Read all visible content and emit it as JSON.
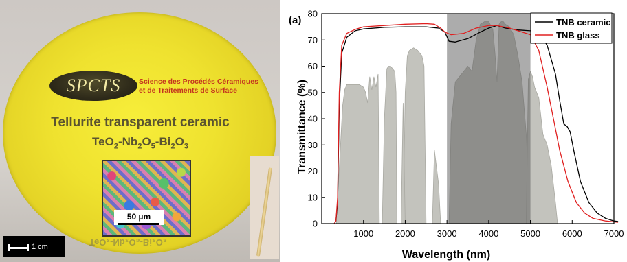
{
  "photo": {
    "logo_text": "SPCTS",
    "lab_line1": "Science des Procédés Céramiques",
    "lab_line2": "et de Traitements de Surface",
    "caption_line1": "Tellurite transparent ceramic",
    "formula": {
      "a": "TeO",
      "a_sub": "2",
      "b": "-Nb",
      "b_sub": "2",
      "c": "O",
      "c_sub": "5",
      "d": "-Bi",
      "d_sub": "2",
      "e": "O",
      "e_sub": "3"
    },
    "micro_scale_label": "50 µm",
    "photo_scale_label": "1 cm",
    "reflection_text": "TeO₂-Nb₂O₅-Bi₂O₃"
  },
  "chart_data": {
    "type": "line",
    "panel_label": "(a)",
    "title": "",
    "xlabel": "Wavelength (nm)",
    "ylabel": "Transmittance (%)",
    "xlim": [
      0,
      7000
    ],
    "ylim": [
      0,
      80
    ],
    "xticks": [
      1000,
      2000,
      3000,
      4000,
      5000,
      6000,
      7000
    ],
    "yticks": [
      0,
      10,
      20,
      30,
      40,
      50,
      60,
      70,
      80
    ],
    "legend_position": "top-right",
    "series": [
      {
        "name": "TNB ceramic",
        "color": "#000000",
        "x": [
          300,
          340,
          380,
          420,
          480,
          600,
          800,
          1000,
          1500,
          2000,
          2500,
          2800,
          2950,
          3050,
          3200,
          3500,
          3800,
          4000,
          4200,
          4400,
          4700,
          5000,
          5200,
          5400,
          5600,
          5700,
          5800,
          5880,
          5950,
          6050,
          6200,
          6400,
          6600,
          6800,
          7000,
          7100
        ],
        "y": [
          0,
          1,
          8,
          45,
          65,
          71,
          73.5,
          74.2,
          74.8,
          75,
          75,
          74.5,
          73,
          69.5,
          69.2,
          70.5,
          73,
          74.5,
          75.5,
          74.5,
          73.8,
          73.5,
          72.5,
          68,
          57,
          47,
          38,
          37,
          35,
          27,
          16,
          8,
          4,
          2,
          1,
          0.8
        ]
      },
      {
        "name": "TNB glass",
        "color": "#e02020",
        "x": [
          300,
          340,
          380,
          420,
          480,
          600,
          800,
          1000,
          1500,
          2000,
          2500,
          2700,
          2850,
          2950,
          3100,
          3400,
          3700,
          4000,
          4200,
          4500,
          4800,
          5000,
          5200,
          5400,
          5550,
          5700,
          5900,
          6100,
          6300,
          6500,
          6800,
          7100
        ],
        "y": [
          0,
          1,
          10,
          50,
          68,
          72.5,
          74,
          75,
          75.5,
          76,
          76.2,
          76,
          74.5,
          73,
          72,
          72.5,
          74.5,
          75.5,
          75.5,
          74.5,
          73,
          72,
          66,
          52,
          40,
          28,
          16,
          8,
          4,
          2,
          1,
          0.5
        ]
      }
    ],
    "shaded_region": {
      "from": 3000,
      "to": 5000
    },
    "atmospheric_windows": [
      {
        "x": [
          350,
          450,
          500,
          550,
          600,
          700,
          800,
          900,
          1000,
          1050,
          1100,
          1150,
          1200,
          1250,
          1300,
          1350,
          1380
        ],
        "y": [
          1,
          30,
          45,
          51,
          53,
          53,
          53,
          53,
          52,
          50,
          46,
          56,
          51,
          56,
          52,
          57,
          0
        ]
      },
      {
        "x": [
          1450,
          1500,
          1560,
          1600,
          1650,
          1700,
          1750,
          1780,
          1800
        ],
        "y": [
          0,
          40,
          59,
          60,
          60,
          59,
          58,
          50,
          0
        ]
      },
      {
        "x": [
          1950,
          2000,
          2050,
          2100,
          2200,
          2300,
          2400,
          2450,
          2500
        ],
        "y": [
          0,
          50,
          64,
          66,
          67,
          66,
          64,
          60,
          0
        ]
      },
      {
        "x": [
          1900,
          1950,
          2000,
          2050
        ],
        "y": [
          0,
          46,
          0,
          0
        ]
      },
      {
        "x": [
          2650,
          2700,
          2800,
          2850
        ],
        "y": [
          0,
          28,
          15,
          0
        ]
      },
      {
        "x": [
          3050,
          3100,
          3200,
          3300,
          3400,
          3500,
          3600,
          3700,
          3800,
          3900,
          4000,
          4100,
          4150,
          4200,
          4250,
          4300,
          4350,
          4400,
          4500,
          4600,
          4700,
          4800,
          4900,
          5000
        ],
        "y": [
          0,
          38,
          54,
          56,
          58,
          60,
          58,
          70,
          76,
          77,
          77,
          74,
          65,
          54,
          76,
          77,
          77,
          76,
          75,
          72,
          64,
          54,
          34,
          0
        ]
      },
      {
        "x": [
          4900,
          4950,
          5000,
          5050,
          5100,
          5200,
          5300,
          5400,
          5500,
          5600,
          5650
        ],
        "y": [
          0,
          55,
          58,
          56,
          52,
          48,
          34,
          30,
          22,
          8,
          0
        ]
      }
    ]
  }
}
